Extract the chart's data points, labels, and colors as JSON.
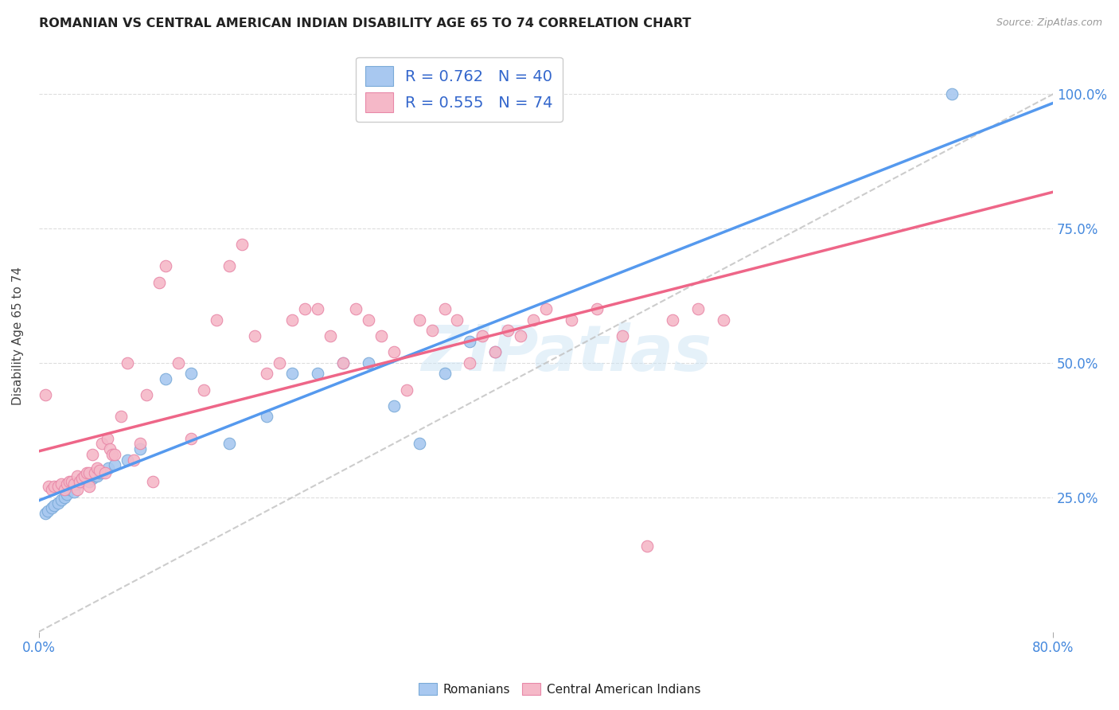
{
  "title": "ROMANIAN VS CENTRAL AMERICAN INDIAN DISABILITY AGE 65 TO 74 CORRELATION CHART",
  "source": "Source: ZipAtlas.com",
  "ylabel": "Disability Age 65 to 74",
  "xlim": [
    0.0,
    0.8
  ],
  "ylim": [
    0.0,
    1.1
  ],
  "x_tick_labels": [
    "0.0%",
    "80.0%"
  ],
  "x_ticks": [
    0.0,
    0.8
  ],
  "y_ticks": [
    0.25,
    0.5,
    0.75,
    1.0
  ],
  "y_tick_labels": [
    "25.0%",
    "50.0%",
    "75.0%",
    "100.0%"
  ],
  "watermark": "ZIPatlas",
  "romanian_color": "#a8c8f0",
  "romanian_edge": "#7aaad8",
  "central_american_color": "#f5b8c8",
  "central_american_edge": "#e888a8",
  "blue_line_color": "#5599ee",
  "pink_line_color": "#ee6688",
  "dashed_line_color": "#c0c0c0",
  "R1": 0.762,
  "N1": 40,
  "R2": 0.555,
  "N2": 74,
  "romanian_x": [
    0.005,
    0.007,
    0.01,
    0.012,
    0.015,
    0.018,
    0.02,
    0.022,
    0.024,
    0.026,
    0.028,
    0.03,
    0.032,
    0.034,
    0.036,
    0.038,
    0.04,
    0.042,
    0.044,
    0.046,
    0.048,
    0.05,
    0.055,
    0.06,
    0.07,
    0.08,
    0.1,
    0.12,
    0.15,
    0.18,
    0.2,
    0.22,
    0.24,
    0.26,
    0.28,
    0.3,
    0.32,
    0.34,
    0.36,
    0.72
  ],
  "romanian_y": [
    0.22,
    0.225,
    0.23,
    0.235,
    0.24,
    0.245,
    0.25,
    0.255,
    0.265,
    0.27,
    0.26,
    0.275,
    0.28,
    0.285,
    0.285,
    0.29,
    0.28,
    0.285,
    0.29,
    0.29,
    0.295,
    0.295,
    0.305,
    0.31,
    0.32,
    0.34,
    0.47,
    0.48,
    0.35,
    0.4,
    0.48,
    0.48,
    0.5,
    0.5,
    0.42,
    0.35,
    0.48,
    0.54,
    0.52,
    1.0
  ],
  "central_x": [
    0.005,
    0.008,
    0.01,
    0.012,
    0.015,
    0.018,
    0.02,
    0.022,
    0.024,
    0.026,
    0.028,
    0.03,
    0.03,
    0.032,
    0.034,
    0.036,
    0.038,
    0.04,
    0.04,
    0.042,
    0.044,
    0.046,
    0.048,
    0.05,
    0.052,
    0.054,
    0.056,
    0.058,
    0.06,
    0.065,
    0.07,
    0.075,
    0.08,
    0.085,
    0.09,
    0.095,
    0.1,
    0.11,
    0.12,
    0.13,
    0.14,
    0.15,
    0.16,
    0.17,
    0.18,
    0.19,
    0.2,
    0.21,
    0.22,
    0.23,
    0.24,
    0.25,
    0.26,
    0.27,
    0.28,
    0.29,
    0.3,
    0.31,
    0.32,
    0.33,
    0.34,
    0.35,
    0.36,
    0.37,
    0.38,
    0.39,
    0.4,
    0.42,
    0.44,
    0.46,
    0.48,
    0.5,
    0.52,
    0.54
  ],
  "central_y": [
    0.44,
    0.27,
    0.265,
    0.27,
    0.27,
    0.275,
    0.265,
    0.275,
    0.28,
    0.28,
    0.275,
    0.265,
    0.29,
    0.28,
    0.285,
    0.29,
    0.295,
    0.27,
    0.295,
    0.33,
    0.295,
    0.305,
    0.3,
    0.35,
    0.295,
    0.36,
    0.34,
    0.33,
    0.33,
    0.4,
    0.5,
    0.32,
    0.35,
    0.44,
    0.28,
    0.65,
    0.68,
    0.5,
    0.36,
    0.45,
    0.58,
    0.68,
    0.72,
    0.55,
    0.48,
    0.5,
    0.58,
    0.6,
    0.6,
    0.55,
    0.5,
    0.6,
    0.58,
    0.55,
    0.52,
    0.45,
    0.58,
    0.56,
    0.6,
    0.58,
    0.5,
    0.55,
    0.52,
    0.56,
    0.55,
    0.58,
    0.6,
    0.58,
    0.6,
    0.55,
    0.16,
    0.58,
    0.6,
    0.58
  ]
}
